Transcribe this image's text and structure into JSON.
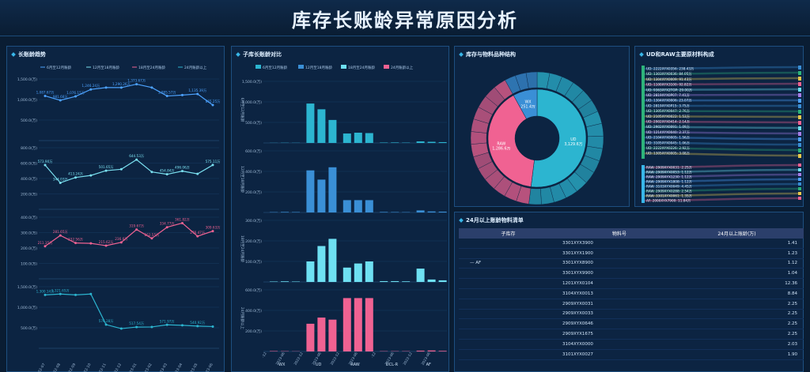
{
  "page": {
    "title": "库存长账龄异常原因分析"
  },
  "panels": {
    "trend": "长账龄趋势",
    "compare": "子库长账龄对比",
    "sunburst": "库存与物料品种结构",
    "sankey": "UD和RAW主要原材料构成",
    "table": "24月以上账龄物料清单"
  },
  "trend": {
    "legend": [
      "6月至12月账龄",
      "12月至18月账龄",
      "18月至24月账龄",
      "24月账龄以上"
    ],
    "colors": [
      "#4da3ff",
      "#7ae0f0",
      "#f06292",
      "#2cb5d0"
    ],
    "x": [
      "2022-07",
      "2022-08",
      "2022-09",
      "2022-10",
      "2022-11",
      "2022-12",
      "2023-01",
      "2023-02",
      "2023-03",
      "2023-04",
      "2023-05",
      "2023-06"
    ],
    "series": [
      {
        "ticks": [
          "500.0(万)",
          "1,000.0(万)",
          "1,500.0(万)"
        ],
        "ylim": [
          0,
          1500
        ],
        "values": [
          1087.67,
          981.68,
          1076.15,
          1246.24,
          1290.26,
          1290.26,
          1373.67,
          1291.34,
          1085.57,
          1107.5,
          1135.39,
          865.25
        ],
        "labels": [
          "1,087.67万",
          "981.68万",
          "1,076.15万",
          "1,246.24万",
          "",
          "1,290.26万",
          "1,373.67万",
          "",
          "1,085.57万",
          "",
          "1,135.39万",
          "865.25万"
        ]
      },
      {
        "ticks": [
          "200.0(万)",
          "400.0(万)",
          "600.0(万)",
          "800.0(万)"
        ],
        "ylim": [
          0,
          800
        ],
        "values": [
          573.9,
          344.03,
          413.24,
          440,
          501.65,
          520,
          644.53,
          485,
          454.84,
          496.06,
          460,
          575.11
        ],
        "labels": [
          "573.90万",
          "344.03万",
          "413.24万",
          "",
          "501.65万",
          "",
          "644.53万",
          "",
          "454.84万",
          "496.06万",
          "",
          "575.11万"
        ]
      },
      {
        "ticks": [
          "100.0(万)",
          "200.0(万)",
          "300.0(万)",
          "400.0(万)"
        ],
        "ylim": [
          0,
          400
        ],
        "values": [
          211.35,
          281.65,
          232.56,
          230,
          215.62,
          236.6,
          319.67,
          262.55,
          334.77,
          361.82,
          276.47,
          309.63
        ],
        "labels": [
          "211.35万",
          "281.65万",
          "232.56万",
          "",
          "215.62万",
          "236.6万",
          "319.67万",
          "262.55万",
          "334.77万",
          "361.82万",
          "276.47万",
          "309.63万"
        ]
      },
      {
        "ticks": [
          "500.0(万)",
          "1,000.0(万)",
          "1,500.0(万)"
        ],
        "ylim": [
          0,
          1500
        ],
        "values": [
          1300.14,
          1321.65,
          1300,
          1321.65,
          576.28,
          480,
          517.54,
          520,
          571.97,
          560,
          540.92,
          530
        ],
        "labels": [
          "1,300.14万",
          "1,321.65万",
          "",
          "",
          "576.28万",
          "",
          "517.54万",
          "",
          "571.97万",
          "",
          "540.92万",
          ""
        ]
      }
    ]
  },
  "compare": {
    "legend": [
      "6月至12月账龄",
      "12月至18月账龄",
      "18月至24月账龄",
      "24月账龄以上"
    ],
    "colors": [
      "#2cb5d0",
      "#3a8fd6",
      "#6ee0f2",
      "#f06292"
    ],
    "row_labels": [
      "6月至12月账龄",
      "12月至18月账龄",
      "18月至24月账龄",
      "24月账龄以上"
    ],
    "ticks": [
      [
        "500.0(万)",
        "1,000.0(万)",
        "1,500.0(万)"
      ],
      [
        "200.0(万)",
        "400.0(万)",
        "600.0(万)"
      ],
      [
        "100.0(万)",
        "200.0(万)",
        "300.0(万)"
      ],
      [
        "200.0(万)",
        "400.0(万)",
        "600.0(万)"
      ]
    ],
    "ylims": [
      1500,
      600,
      300,
      600
    ],
    "groups": [
      "WX",
      "UD",
      "RAW",
      "DCL-R",
      "AF"
    ],
    "xlabels": [
      "-12",
      "2023-06",
      "2022-12",
      "2023-06",
      "2022-12",
      "2023-06",
      "-12",
      "2023-06",
      "2022-12",
      "2023-06"
    ],
    "values": [
      [
        [
          3,
          5,
          4
        ],
        [
          960,
          820,
          560
        ],
        [
          230,
          250,
          240
        ],
        [
          10,
          12,
          8
        ],
        [
          38,
          28,
          20
        ]
      ],
      [
        [
          3,
          5,
          4
        ],
        [
          410,
          320,
          440
        ],
        [
          120,
          120,
          120
        ],
        [
          5,
          4,
          3
        ],
        [
          20,
          10,
          8
        ]
      ],
      [
        [
          2,
          3,
          2
        ],
        [
          100,
          175,
          210
        ],
        [
          70,
          90,
          100
        ],
        [
          4,
          4,
          3
        ],
        [
          65,
          12,
          8
        ]
      ],
      [
        [
          4,
          3,
          2
        ],
        [
          270,
          330,
          310
        ],
        [
          520,
          520,
          520
        ],
        [
          3,
          3,
          3
        ],
        [
          8,
          10,
          6
        ]
      ]
    ]
  },
  "sunburst": {
    "inner": [
      {
        "name": "UD",
        "value": 52,
        "color": "#2cb5d0"
      },
      {
        "name": "RAW",
        "value": 40,
        "color": "#f06292"
      },
      {
        "name": "WX",
        "value": 8,
        "color": "#3a8fd6"
      }
    ],
    "labels": [
      {
        "text": "UD\n3,129.6万"
      },
      {
        "text": "RAW\n1,286.6万"
      },
      {
        "text": "WX\n251.4万"
      }
    ]
  },
  "sankey": {
    "ud_items": [
      "UD: 2222XYX0356: 238.43万",
      "UD: 1303XYX0036: 84.05万",
      "UD: 1304XYX0009: 91.43万",
      "UD: 1100XYX3100: 92.82万",
      "UD: 9363XYX2TOP: 29.00万",
      "UD: 2819XYX0P07: 7.41万",
      "UD: 1304XYX0006: 23.07万",
      "UD: 2819XYX0P15: 3.75万",
      "UD: 1305XYX0047: 2.76万",
      "UD: 2105XYX0022: 1.53万",
      "UD: 2902XYX0414: 2.14万",
      "UD: 2902XYX0091: 1.09万",
      "UD: 1214XYX0040: 2.37万",
      "UD: 2104XYX0005: 1.56万",
      "UD: 3105XYX0045: 1.06万",
      "UD: 2222XYX0226: 2.92万",
      "UD: 1305XYX0005: 3.08万"
    ],
    "raw_items": [
      "RAW: 2909XYX0031: 2.25万",
      "RAW: 2909XYX0053: 1.12万",
      "RAW: 2909XYX1230: 1.12万",
      "RAW: 2909XYX1808: 1.12万",
      "RAW: 3103XYX0049: 4.45万",
      "RAW: 2909XYX0288: 2.54万",
      "RAW: 3301XYX0061: 1.35万",
      "AF: 2000XYX7900: 11.84万"
    ]
  },
  "table": {
    "headers": [
      "子库存",
      "物料号",
      "24月以上账龄(万)"
    ],
    "group": "AF",
    "rows": [
      [
        "3301XYX3900",
        "1.41"
      ],
      [
        "3301XYX1900",
        "1.23"
      ],
      [
        "3301XYX8900",
        "1.12"
      ],
      [
        "3301XYX9900",
        "1.04"
      ],
      [
        "1201XYX0104",
        "12.36"
      ],
      [
        "3104XYX0013",
        "8.84"
      ],
      [
        "2909XYX0031",
        "2.25"
      ],
      [
        "2909XYX0033",
        "2.25"
      ],
      [
        "2909XYX0646",
        "2.25"
      ],
      [
        "2909XYX1675",
        "2.25"
      ],
      [
        "3104XYX0000",
        "2.03"
      ],
      [
        "3101XYX0027",
        "1.90"
      ]
    ]
  }
}
